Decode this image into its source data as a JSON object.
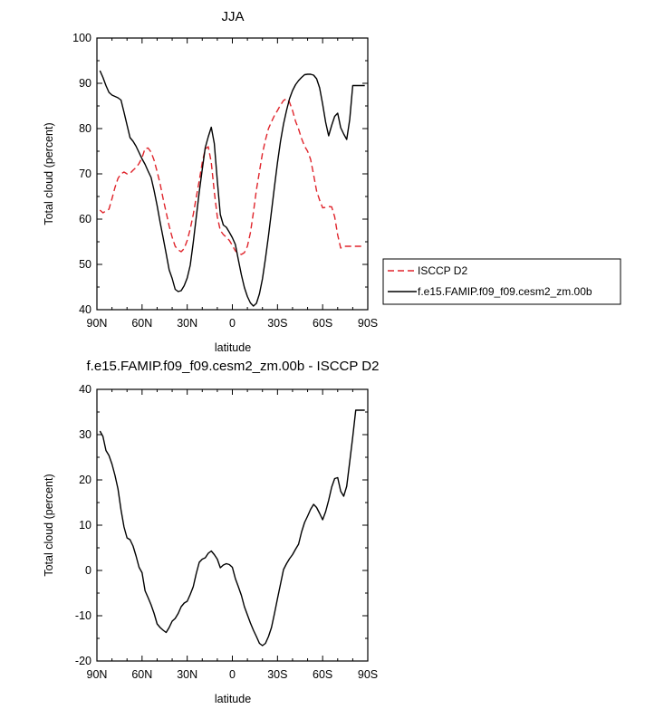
{
  "chart_data": [
    {
      "type": "line",
      "title": "JJA",
      "xlabel": "latitude",
      "ylabel": "Total cloud (percent)",
      "xlim": [
        90,
        -90
      ],
      "ylim": [
        40,
        100
      ],
      "xticks": [
        90,
        60,
        30,
        0,
        -30,
        -60,
        -90
      ],
      "xtick_labels": [
        "90N",
        "60N",
        "30N",
        "0",
        "30S",
        "60S",
        "90S"
      ],
      "yticks": [
        40,
        50,
        60,
        70,
        80,
        90,
        100
      ],
      "ytick_labels": [
        "40",
        "50",
        "60",
        "70",
        "80",
        "90",
        "100"
      ],
      "grid": false,
      "legend": "right",
      "series": [
        {
          "name": "ISCCP D2",
          "color": "#e0242b",
          "dash": "dashed",
          "x": [
            88,
            86,
            84,
            82,
            80,
            78,
            76,
            74,
            72,
            70,
            68,
            66,
            64,
            62,
            60,
            58,
            56,
            54,
            52,
            50,
            48,
            46,
            44,
            42,
            40,
            38,
            36,
            34,
            32,
            30,
            28,
            26,
            24,
            22,
            20,
            18,
            16,
            14,
            12,
            10,
            8,
            6,
            4,
            2,
            0,
            -2,
            -4,
            -6,
            -8,
            -10,
            -12,
            -14,
            -16,
            -18,
            -20,
            -22,
            -24,
            -26,
            -28,
            -30,
            -32,
            -34,
            -36,
            -38,
            -40,
            -42,
            -44,
            -46,
            -48,
            -50,
            -52,
            -54,
            -56,
            -58,
            -60,
            -62,
            -64,
            -66,
            -68,
            -70,
            -72,
            -74,
            -76,
            -78,
            -80,
            -82,
            -84,
            -86,
            -88
          ],
          "values": [
            62,
            61.4,
            61.8,
            62.2,
            64.5,
            67,
            69,
            70,
            70.4,
            70.0,
            70.1,
            70.8,
            71.4,
            72.3,
            73.6,
            75.6,
            75.7,
            74.8,
            73.0,
            70.5,
            67.8,
            64.5,
            61.5,
            58.5,
            56,
            54,
            53.2,
            52.8,
            53.5,
            55.3,
            57.8,
            61,
            64.8,
            68.5,
            72.5,
            75.5,
            76.0,
            72.5,
            66,
            60.5,
            57.5,
            56.6,
            56.0,
            55.3,
            54.2,
            53.0,
            52.4,
            52.2,
            52.6,
            54.0,
            57.0,
            61.5,
            66.5,
            70.5,
            74.5,
            77.5,
            80.0,
            81.5,
            82.9,
            84.0,
            85.2,
            86.2,
            86.6,
            85.8,
            84,
            81.6,
            79.9,
            77.8,
            76.1,
            75.0,
            73.2,
            69.8,
            66.2,
            64.2,
            62.5,
            62.6,
            62.8,
            62.7,
            60.5,
            56.5,
            53.6,
            54.0,
            54.0,
            54.0,
            54.0,
            54.0,
            54.0,
            54.0,
            54.0
          ]
        },
        {
          "name": "f.e15.FAMIP.f09_f09.cesm2_zm.00b",
          "color": "#000000",
          "dash": "solid",
          "x": [
            88,
            86,
            84,
            82,
            80,
            78,
            76,
            74,
            72,
            70,
            68,
            66,
            64,
            62,
            60,
            58,
            56,
            54,
            52,
            50,
            48,
            46,
            44,
            42,
            40,
            38,
            36,
            34,
            32,
            30,
            28,
            26,
            24,
            22,
            20,
            18,
            16,
            14,
            12,
            10,
            8,
            6,
            4,
            2,
            0,
            -2,
            -4,
            -6,
            -8,
            -10,
            -12,
            -14,
            -16,
            -18,
            -20,
            -22,
            -24,
            -26,
            -28,
            -30,
            -32,
            -34,
            -36,
            -38,
            -40,
            -42,
            -44,
            -46,
            -48,
            -50,
            -52,
            -54,
            -56,
            -58,
            -60,
            -62,
            -64,
            -66,
            -68,
            -70,
            -72,
            -74,
            -76,
            -78,
            -80,
            -82,
            -84,
            -86,
            -88
          ],
          "values": [
            92.8,
            91.3,
            89.5,
            88.0,
            87.4,
            87.1,
            86.8,
            86.3,
            83.6,
            80.8,
            78.0,
            77.2,
            76.1,
            74.7,
            73.3,
            72.1,
            70.6,
            69.2,
            66.3,
            63.0,
            59.3,
            55.9,
            52.4,
            48.8,
            46.9,
            44.5,
            44.0,
            44.2,
            45.3,
            47.0,
            49.8,
            54.8,
            60.4,
            66.0,
            71.0,
            75.8,
            78.2,
            80.3,
            76.7,
            68.5,
            61.0,
            58.7,
            58.2,
            57.1,
            55.9,
            54.4,
            51.0,
            47.7,
            44.9,
            42.9,
            41.5,
            40.8,
            41.4,
            43.5,
            46.8,
            51.3,
            56.3,
            61.7,
            67.2,
            72.5,
            77.2,
            81.0,
            84.0,
            86.6,
            88.4,
            89.7,
            90.6,
            91.3,
            91.9,
            92.0,
            92.0,
            91.8,
            91.0,
            89.0,
            85.4,
            81.4,
            78.4,
            80.7,
            82.7,
            83.4,
            80.2,
            78.8,
            77.6,
            82.0,
            89.5,
            89.5,
            89.5,
            89.5,
            89.5
          ]
        }
      ]
    },
    {
      "type": "line",
      "title": "f.e15.FAMIP.f09_f09.cesm2_zm.00b - ISCCP D2",
      "xlabel": "latitude",
      "ylabel": "Total cloud (percent)",
      "xlim": [
        90,
        -90
      ],
      "ylim": [
        -20,
        40
      ],
      "xticks": [
        90,
        60,
        30,
        0,
        -30,
        -60,
        -90
      ],
      "xtick_labels": [
        "90N",
        "60N",
        "30N",
        "0",
        "30S",
        "60S",
        "90S"
      ],
      "yticks": [
        -20,
        -10,
        0,
        10,
        20,
        30,
        40
      ],
      "ytick_labels": [
        "-20",
        "-10",
        "0",
        "10",
        "20",
        "30",
        "40"
      ],
      "grid": false,
      "legend": "none",
      "series": [
        {
          "color": "#000000",
          "dash": "solid",
          "x": [
            88,
            86,
            84,
            82,
            80,
            78,
            76,
            74,
            72,
            70,
            68,
            66,
            64,
            62,
            60,
            58,
            56,
            54,
            52,
            50,
            48,
            46,
            44,
            42,
            40,
            38,
            36,
            34,
            32,
            30,
            28,
            26,
            24,
            22,
            20,
            18,
            16,
            14,
            12,
            10,
            8,
            6,
            4,
            2,
            0,
            -2,
            -4,
            -6,
            -8,
            -10,
            -12,
            -14,
            -16,
            -18,
            -20,
            -22,
            -24,
            -26,
            -28,
            -30,
            -32,
            -34,
            -36,
            -38,
            -40,
            -42,
            -44,
            -46,
            -48,
            -50,
            -52,
            -54,
            -56,
            -58,
            -60,
            -62,
            -64,
            -66,
            -68,
            -70,
            -72,
            -74,
            -76,
            -78,
            -80,
            -82,
            -84,
            -86,
            -88
          ],
          "values": [
            30.8,
            29.6,
            26.5,
            25.4,
            23.5,
            21.0,
            18.0,
            13.4,
            9.6,
            7.2,
            6.8,
            5.4,
            3.2,
            0.7,
            -0.5,
            -4.5,
            -6.0,
            -7.6,
            -9.5,
            -11.8,
            -12.6,
            -13.2,
            -13.7,
            -12.6,
            -11.2,
            -10.6,
            -9.5,
            -8.0,
            -7.2,
            -6.8,
            -5.3,
            -3.6,
            -0.7,
            1.8,
            2.5,
            2.8,
            3.8,
            4.3,
            3.5,
            2.5,
            0.6,
            1.2,
            1.5,
            1.3,
            0.7,
            -1.8,
            -3.6,
            -5.5,
            -8.0,
            -9.8,
            -11.6,
            -13.2,
            -14.6,
            -16.1,
            -16.6,
            -16.1,
            -14.6,
            -12.6,
            -9.5,
            -6.2,
            -3.0,
            0.2,
            1.5,
            2.6,
            3.5,
            4.7,
            5.8,
            8.5,
            10.6,
            12.0,
            13.5,
            14.6,
            13.9,
            12.6,
            11.2,
            13.0,
            15.5,
            18.4,
            20.3,
            20.5,
            17.5,
            16.4,
            18.6,
            24.0,
            29.5,
            35.4,
            35.4,
            35.4,
            35.4
          ]
        }
      ]
    }
  ]
}
